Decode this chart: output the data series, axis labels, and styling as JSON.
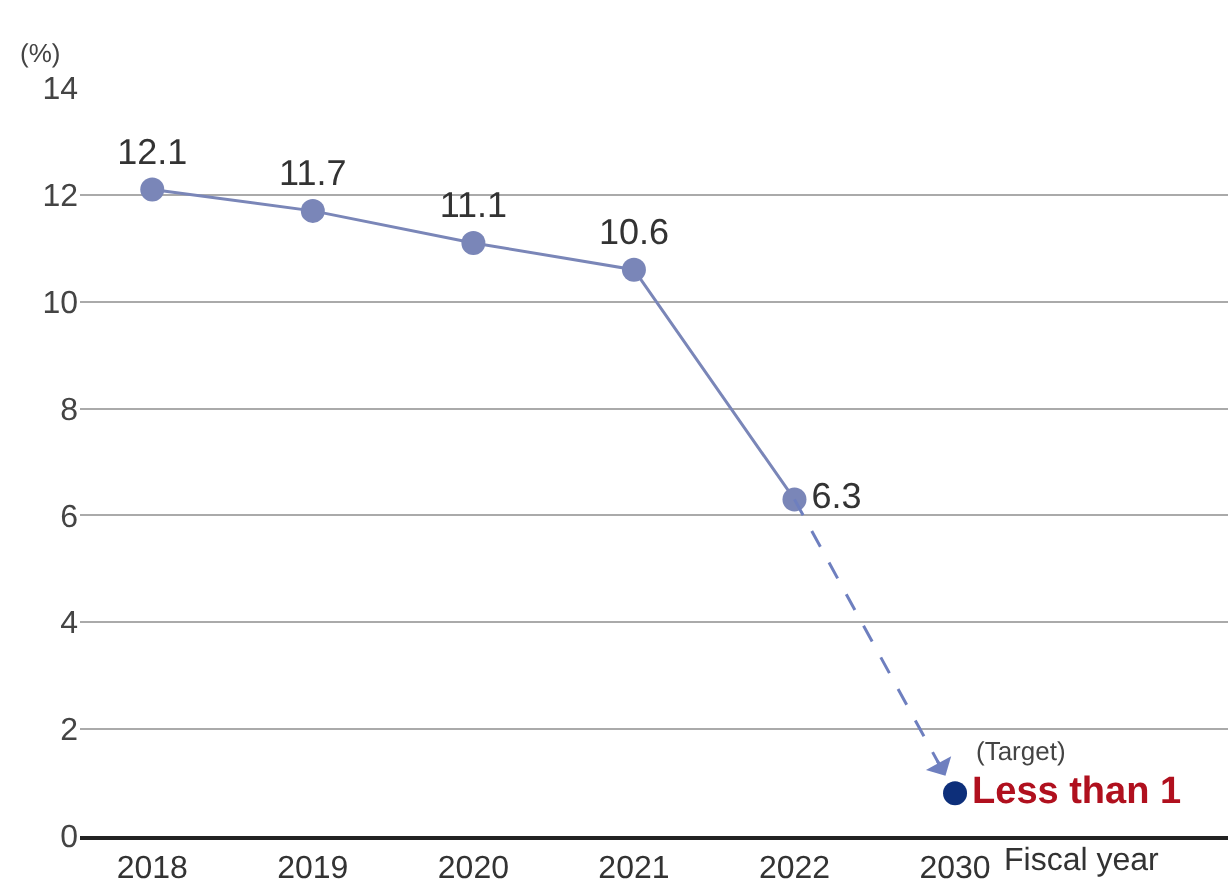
{
  "chart_data": {
    "type": "line",
    "xlabel": "Fiscal year",
    "ylabel": "(%)",
    "categories": [
      "2018",
      "2019",
      "2020",
      "2021",
      "2022",
      "2030"
    ],
    "series": [
      {
        "color": "#7a86b8",
        "marker": "circle",
        "line_style": "solid",
        "values": [
          12.1,
          11.7,
          11.1,
          10.6,
          6.3,
          null
        ],
        "value_labels": [
          "12.1",
          "11.7",
          "11.1",
          "10.6",
          "6.3",
          null
        ]
      },
      {
        "type": "line",
        "color": "#6e7fbf",
        "line_style": "dashed",
        "values": [
          null,
          null,
          null,
          null,
          6.3,
          0.8
        ]
      },
      {
        "type": "scatter",
        "color": "#0d2f7a",
        "marker": "circle",
        "values": [
          null,
          null,
          null,
          null,
          null,
          0.8
        ],
        "value_labels": [
          null,
          null,
          null,
          null,
          null,
          "Less than 1"
        ]
      }
    ],
    "annotations": [
      {
        "text": "(Target)",
        "x": "2030",
        "y": 0.8
      }
    ],
    "ylim": [
      0,
      14
    ],
    "yticks": [
      0,
      2,
      4,
      6,
      8,
      10,
      12,
      14
    ],
    "grid": "y"
  }
}
